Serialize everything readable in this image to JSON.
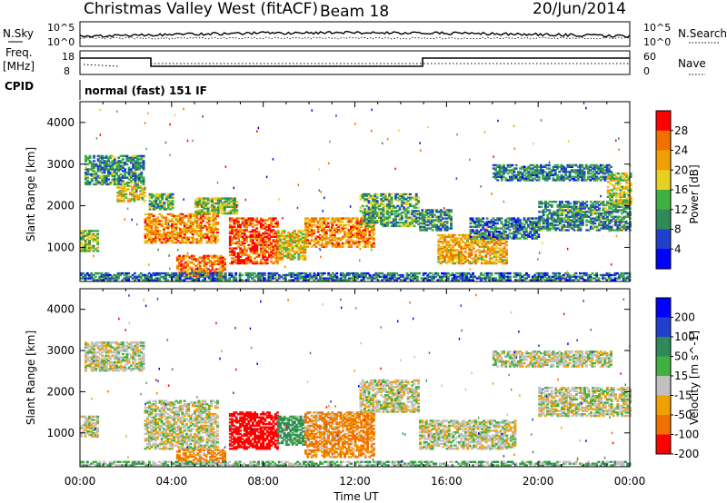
{
  "header": {
    "title": "Christmas Valley West (fitACF)",
    "beam": "Beam 18",
    "date": "20/Jun/2014"
  },
  "strips": {
    "nsky_label": "N.Sky",
    "nsky_ticks": [
      "10^5",
      "10^0"
    ],
    "nsearch_label": "N.Search",
    "nsearch_ticks": [
      "10^5",
      "10^0"
    ],
    "freq_label_top": "Freq.",
    "freq_label_bottom": "[MHz]",
    "freq_ticks": [
      "18",
      "8"
    ],
    "nave_label": "Nave",
    "nave_ticks": [
      "60",
      "0"
    ],
    "cpid_label": "CPID",
    "cpid_value": "normal (fast) 151 IF"
  },
  "chart_data": [
    {
      "type": "heatmap",
      "panel": "power",
      "ylabel": "Slant Range [km]",
      "xlabel": "Time UT",
      "x_unit": "hours UT",
      "xlim": [
        0,
        24
      ],
      "ylim": [
        180,
        4500
      ],
      "yticks": [
        1000,
        2000,
        3000,
        4000
      ],
      "xticks": [
        "00:00",
        "04:00",
        "08:00",
        "12:00",
        "16:00",
        "20:00",
        "00:00"
      ],
      "colorbar": {
        "label": "Power [dB]",
        "ticks": [
          4,
          8,
          12,
          16,
          20,
          24,
          28
        ],
        "range": [
          0,
          30
        ],
        "colors": [
          "#0000ff",
          "#1f3fcc",
          "#2e8b57",
          "#40b040",
          "#e8d020",
          "#f0a000",
          "#f07000",
          "#ff0000"
        ]
      },
      "regions": [
        {
          "t0": 0.0,
          "t1": 0.8,
          "r0": 900,
          "r1": 1400,
          "v": 14
        },
        {
          "t0": 0.2,
          "t1": 2.8,
          "r0": 2500,
          "r1": 3200,
          "v": 10
        },
        {
          "t0": 1.6,
          "t1": 2.8,
          "r0": 2100,
          "r1": 2500,
          "v": 18
        },
        {
          "t0": 2.8,
          "t1": 6.0,
          "r0": 1100,
          "r1": 1800,
          "v": 22
        },
        {
          "t0": 3.0,
          "t1": 4.0,
          "r0": 1900,
          "r1": 2300,
          "v": 12
        },
        {
          "t0": 5.0,
          "t1": 6.8,
          "r0": 1800,
          "r1": 2200,
          "v": 14
        },
        {
          "t0": 4.2,
          "t1": 6.3,
          "r0": 300,
          "r1": 800,
          "v": 24
        },
        {
          "t0": 6.5,
          "t1": 8.6,
          "r0": 600,
          "r1": 1700,
          "v": 26
        },
        {
          "t0": 8.6,
          "t1": 9.8,
          "r0": 700,
          "r1": 1400,
          "v": 18
        },
        {
          "t0": 9.8,
          "t1": 12.8,
          "r0": 1000,
          "r1": 1700,
          "v": 22
        },
        {
          "t0": 12.2,
          "t1": 14.8,
          "r0": 1500,
          "r1": 2300,
          "v": 12
        },
        {
          "t0": 14.8,
          "t1": 16.2,
          "r0": 1400,
          "r1": 1900,
          "v": 10
        },
        {
          "t0": 15.6,
          "t1": 18.6,
          "r0": 600,
          "r1": 1300,
          "v": 20
        },
        {
          "t0": 17.0,
          "t1": 20.0,
          "r0": 1200,
          "r1": 1700,
          "v": 8
        },
        {
          "t0": 18.0,
          "t1": 23.2,
          "r0": 2600,
          "r1": 3000,
          "v": 9
        },
        {
          "t0": 20.0,
          "t1": 24.0,
          "r0": 1400,
          "r1": 2100,
          "v": 10
        },
        {
          "t0": 23.0,
          "t1": 24.0,
          "r0": 2000,
          "r1": 2800,
          "v": 16
        },
        {
          "t0": 0.0,
          "t1": 24.0,
          "r0": 200,
          "r1": 400,
          "v": 8
        }
      ]
    },
    {
      "type": "heatmap",
      "panel": "velocity",
      "ylabel": "Slant Range [km]",
      "xlabel": "Time UT",
      "x_unit": "hours UT",
      "xlim": [
        0,
        24
      ],
      "ylim": [
        180,
        4500
      ],
      "yticks": [
        1000,
        2000,
        3000,
        4000
      ],
      "xticks": [
        "00:00",
        "04:00",
        "08:00",
        "12:00",
        "16:00",
        "20:00",
        "00:00"
      ],
      "colorbar": {
        "label": "Velocity [m s^-1]",
        "ticks": [
          200,
          100,
          50,
          15,
          -15,
          -50,
          -100,
          -200
        ],
        "colors": [
          "#0000ff",
          "#1f3fcc",
          "#2e8b57",
          "#40b040",
          "#c0c0c0",
          "#f0a000",
          "#f07000",
          "#ff0000"
        ]
      },
      "regions": [
        {
          "t0": 0.0,
          "t1": 0.8,
          "r0": 900,
          "r1": 1400,
          "v": 0
        },
        {
          "t0": 0.2,
          "t1": 2.8,
          "r0": 2500,
          "r1": 3200,
          "v": 0
        },
        {
          "t0": 2.8,
          "t1": 6.0,
          "r0": 600,
          "r1": 1800,
          "v": 0
        },
        {
          "t0": 4.2,
          "t1": 6.3,
          "r0": 250,
          "r1": 600,
          "v": -40
        },
        {
          "t0": 6.5,
          "t1": 8.6,
          "r0": 600,
          "r1": 1500,
          "v": -120
        },
        {
          "t0": 8.6,
          "t1": 9.8,
          "r0": 700,
          "r1": 1400,
          "v": 40
        },
        {
          "t0": 9.8,
          "t1": 12.8,
          "r0": 400,
          "r1": 1500,
          "v": -40
        },
        {
          "t0": 12.2,
          "t1": 14.8,
          "r0": 1500,
          "r1": 2300,
          "v": 0
        },
        {
          "t0": 14.8,
          "t1": 19.0,
          "r0": 600,
          "r1": 1300,
          "v": 0
        },
        {
          "t0": 18.0,
          "t1": 23.2,
          "r0": 2600,
          "r1": 3000,
          "v": 0
        },
        {
          "t0": 20.0,
          "t1": 24.0,
          "r0": 1400,
          "r1": 2100,
          "v": 0
        },
        {
          "t0": 0.0,
          "t1": 24.0,
          "r0": 200,
          "r1": 300,
          "v": 20
        }
      ]
    }
  ]
}
